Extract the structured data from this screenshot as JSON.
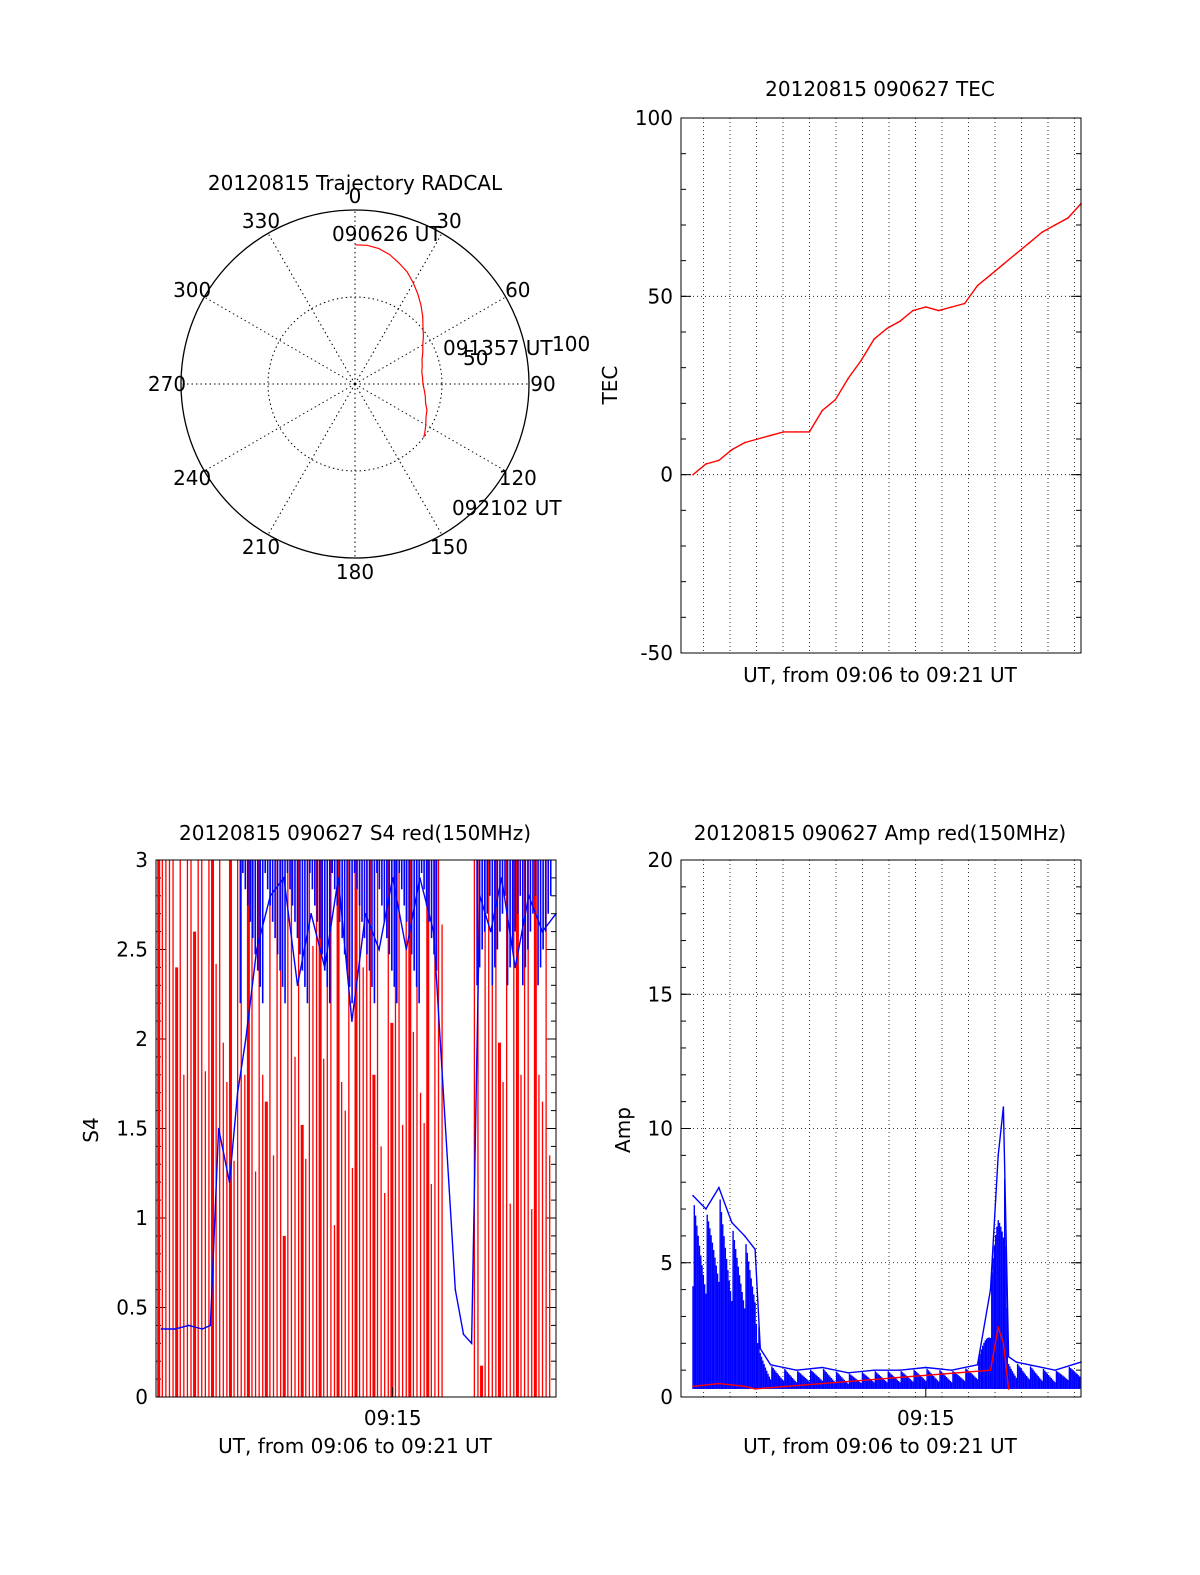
{
  "chart_data": [
    {
      "type": "polar",
      "title": "20120815 Trajectory RADCAL",
      "angle_labels": [
        "0",
        "30",
        "60",
        "90",
        "120",
        "150",
        "180",
        "210",
        "240",
        "270",
        "300",
        "330"
      ],
      "radius_labels": [
        "50",
        "100"
      ],
      "rlim": [
        0,
        100
      ],
      "start_label": "090626 UT",
      "mid_label": "091357 UT",
      "end_label": "092102 UT",
      "trajectory": {
        "color": "#ff0000",
        "points": [
          [
            0,
            80
          ],
          [
            5,
            80
          ],
          [
            10,
            79
          ],
          [
            15,
            77
          ],
          [
            20,
            74
          ],
          [
            25,
            71
          ],
          [
            30,
            67
          ],
          [
            35,
            63
          ],
          [
            40,
            59
          ],
          [
            45,
            55
          ],
          [
            50,
            51
          ],
          [
            55,
            48
          ],
          [
            60,
            45
          ],
          [
            65,
            43
          ],
          [
            70,
            41
          ],
          [
            75,
            40
          ],
          [
            80,
            39
          ],
          [
            85,
            39
          ],
          [
            90,
            39
          ],
          [
            95,
            40
          ],
          [
            100,
            41
          ],
          [
            105,
            42
          ],
          [
            110,
            44
          ],
          [
            115,
            45
          ],
          [
            120,
            47
          ],
          [
            125,
            49
          ],
          [
            128,
            50
          ]
        ]
      }
    },
    {
      "type": "line",
      "title": "20120815 090627 TEC",
      "xlabel": "UT, from 09:06 to 09:21 UT",
      "ylabel": "TEC",
      "ylim": [
        -50,
        100
      ],
      "yticks": [
        "-50",
        "0",
        "50",
        "100"
      ],
      "xlim_minutes": [
        0,
        15
      ],
      "grid": true,
      "series": [
        {
          "color": "#ff0000",
          "x": [
            0,
            0.5,
            1,
            1.5,
            2,
            2.5,
            3,
            3.5,
            4,
            4.5,
            5,
            5.5,
            6,
            6.5,
            7,
            7.5,
            8,
            8.5,
            9,
            9.5,
            10,
            10.5,
            11,
            11.5,
            12,
            12.5,
            13,
            13.5,
            14,
            14.5,
            15
          ],
          "y": [
            0,
            3,
            4,
            7,
            9,
            10,
            11,
            12,
            12,
            12,
            18,
            21,
            27,
            32,
            38,
            41,
            43,
            46,
            47,
            46,
            47,
            48,
            53,
            56,
            59,
            62,
            65,
            68,
            70,
            72,
            76
          ]
        }
      ]
    },
    {
      "type": "line",
      "title": "20120815 090627 S4 red(150MHz)",
      "xlabel": "UT, from 09:06 to 09:21 UT",
      "ylabel": "S4",
      "ylim": [
        0,
        3
      ],
      "yticks": [
        "0",
        "0.5",
        "1",
        "1.5",
        "2",
        "2.5",
        "3"
      ],
      "xtick_label": "09:15",
      "xtick_minute": 9,
      "xlim_minutes": [
        0.3,
        15
      ],
      "series": [
        {
          "name": "",
          "color": "#0000ff",
          "x": [
            0.5,
            1,
            1.5,
            2,
            2.3,
            2.6,
            3,
            3.3,
            3.6,
            4,
            4.5,
            5,
            5.5,
            6,
            6.5,
            7,
            7.5,
            8,
            8.5,
            9,
            9.5,
            10,
            10.5,
            11.3,
            11.6,
            11.9,
            12.2,
            12.6,
            13,
            13.5,
            14,
            14.5,
            15
          ],
          "y": [
            0.38,
            0.38,
            0.4,
            0.38,
            0.4,
            1.5,
            1.2,
            1.7,
            2.0,
            2.5,
            2.8,
            2.9,
            2.3,
            2.7,
            2.4,
            2.9,
            2.1,
            2.7,
            2.5,
            2.9,
            2.5,
            2.9,
            2.6,
            0.6,
            0.35,
            0.3,
            2.8,
            2.6,
            2.9,
            2.4,
            2.8,
            2.6,
            2.7
          ]
        },
        {
          "name": "",
          "color": "#ff0000",
          "x": [
            0.5,
            1,
            2,
            3,
            4,
            5,
            6,
            7,
            8,
            9,
            10,
            11,
            11.5,
            12,
            13,
            14,
            15
          ],
          "y": [
            3,
            2.6,
            2.2,
            1.8,
            1.5,
            1.9,
            2.1,
            1.6,
            2.0,
            1.9,
            1.7,
            2.4,
            0.25,
            2.2,
            1.8,
            1.5,
            2.1
          ]
        }
      ]
    },
    {
      "type": "line",
      "title": "20120815 090627 Amp red(150MHz)",
      "xlabel": "UT, from 09:06 to 09:21 UT",
      "ylabel": "Amp",
      "ylim": [
        0,
        20
      ],
      "yticks": [
        "0",
        "5",
        "10",
        "15",
        "20"
      ],
      "xtick_label": "09:15",
      "xtick_minute": 9,
      "xlim_minutes": [
        0,
        15
      ],
      "grid": true,
      "series": [
        {
          "name": "",
          "color": "#0000ff",
          "x": [
            0,
            0.5,
            1,
            1.5,
            2,
            2.4,
            2.6,
            3,
            4,
            5,
            6,
            7,
            8,
            9,
            10,
            11,
            11.5,
            11.8,
            12,
            12.2,
            12.5,
            13,
            14,
            15
          ],
          "y": [
            7.5,
            7.0,
            7.8,
            6.5,
            6.0,
            5.5,
            1.8,
            1.2,
            1.0,
            1.1,
            0.9,
            1.0,
            1.0,
            1.1,
            1.0,
            1.2,
            4.0,
            9.0,
            10.8,
            1.5,
            1.3,
            1.2,
            1.0,
            1.3
          ]
        },
        {
          "name": "",
          "color": "#ff0000",
          "x": [
            0,
            1,
            2,
            2.4,
            11.5,
            11.8,
            12,
            12.2
          ],
          "y": [
            0.4,
            0.5,
            0.4,
            0.3,
            1.0,
            2.6,
            2.0,
            0.3
          ]
        }
      ]
    }
  ]
}
